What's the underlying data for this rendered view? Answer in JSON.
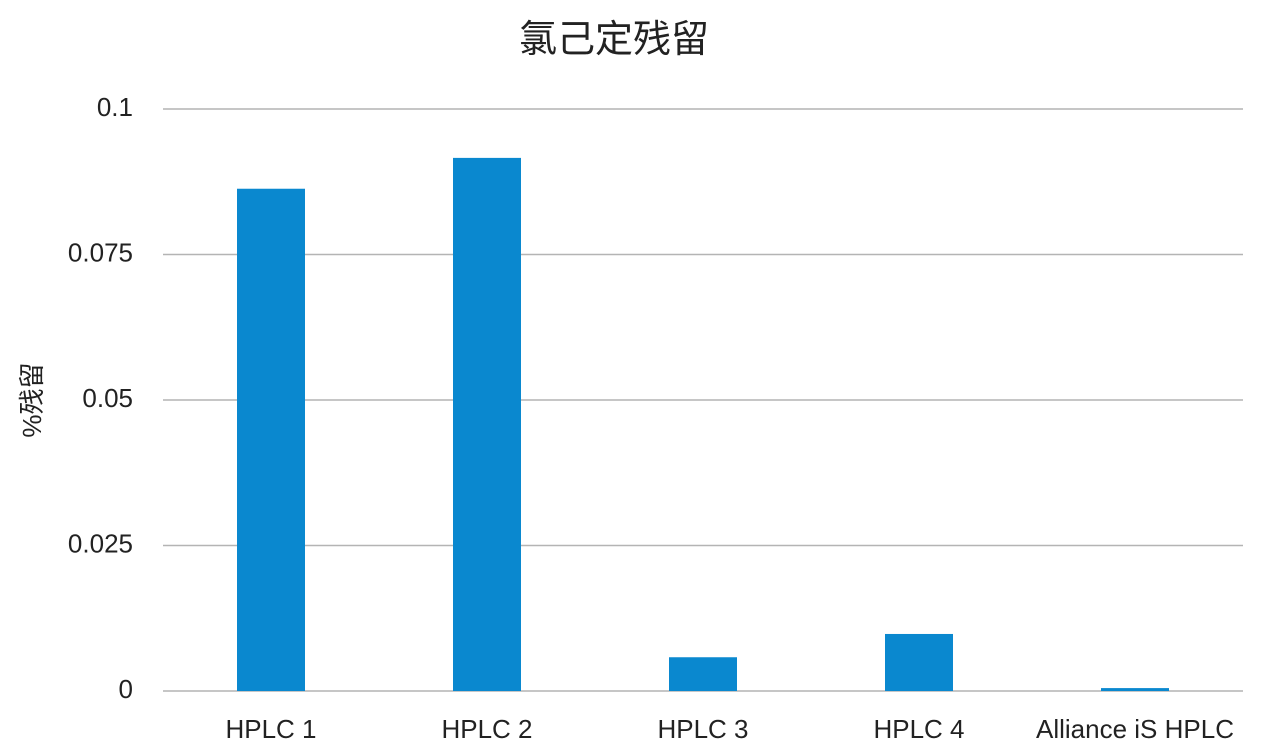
{
  "chart_data": {
    "type": "bar",
    "title": "氯己定残留",
    "y_label": "%残留",
    "categories": [
      "HPLC 1",
      "HPLC 2",
      "HPLC 3",
      "HPLC 4",
      "Alliance iS HPLC"
    ],
    "values": [
      0.0863,
      0.0916,
      0.0058,
      0.0098,
      0.0005
    ],
    "color": "#0a88cf",
    "ylim": [
      0,
      0.1
    ],
    "yticks": [
      0,
      0.025,
      0.05,
      0.075,
      0.1
    ],
    "grid": true
  }
}
